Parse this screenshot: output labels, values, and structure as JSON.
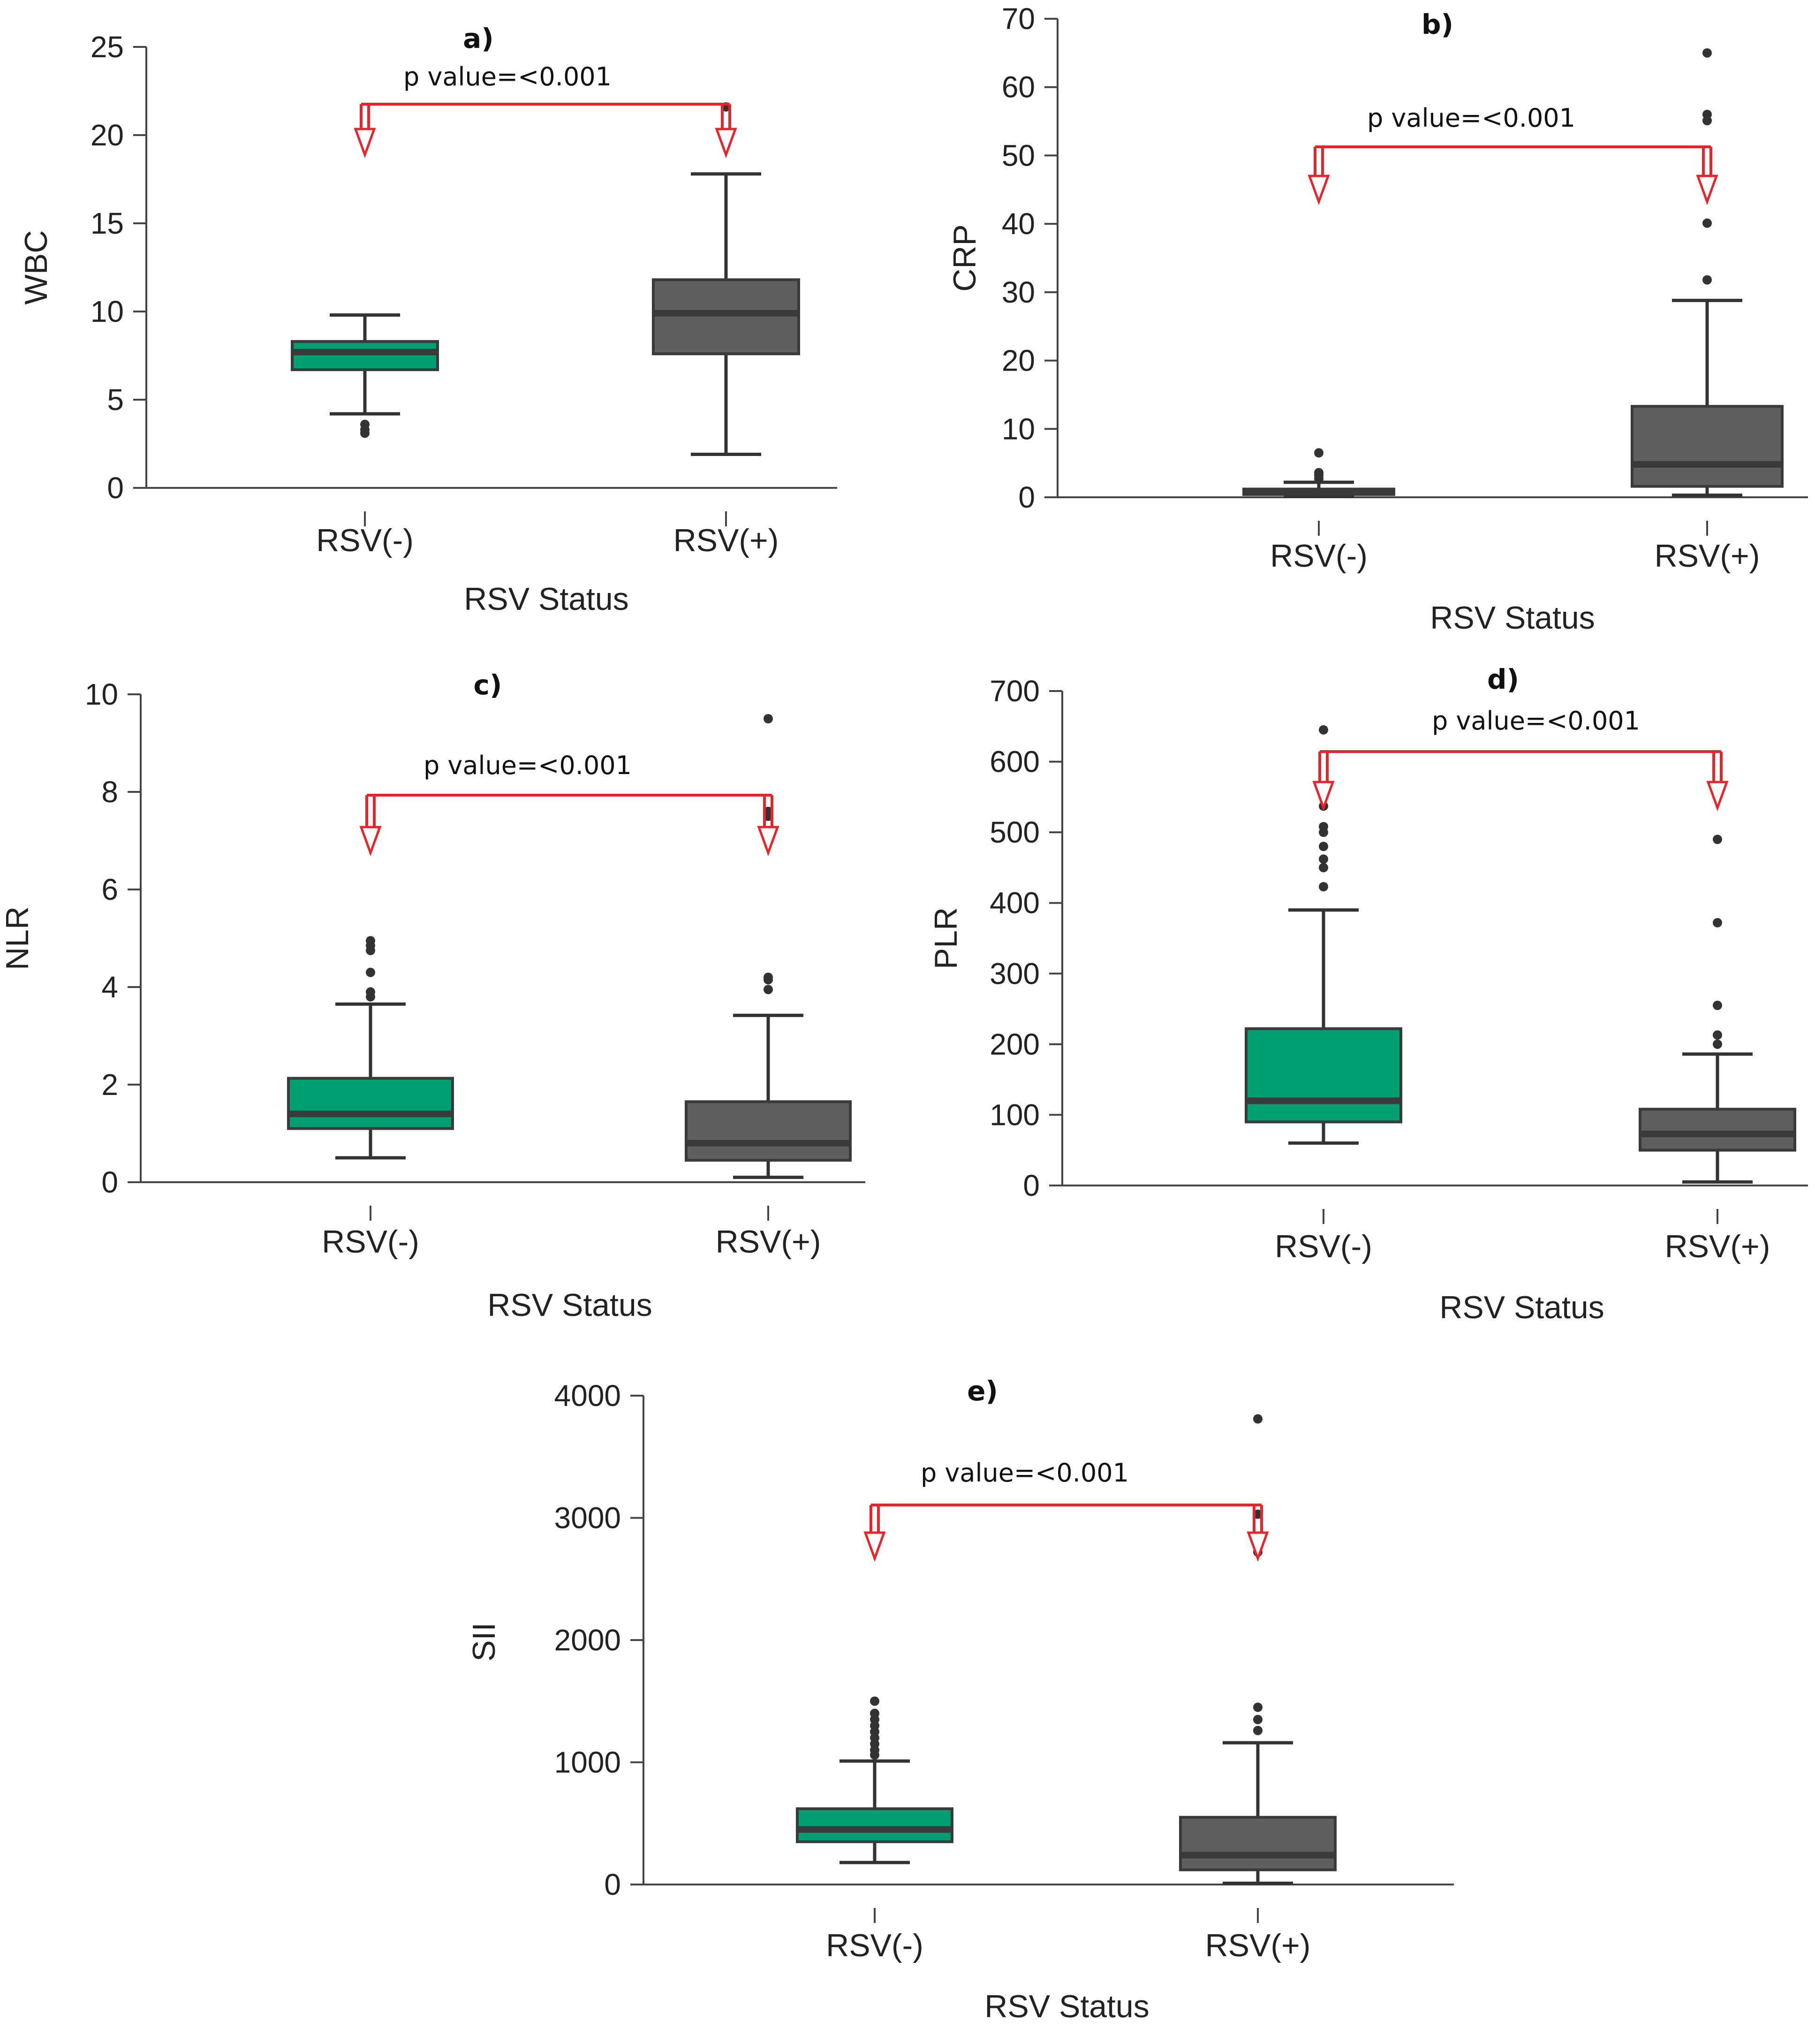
{
  "colors": {
    "negative": "#009e73",
    "positive": "#5f5f5f",
    "bracket": "#e8242b"
  },
  "chart_data": [
    {
      "type": "box",
      "panel_label": "a)",
      "ylabel": "WBC",
      "xlabel": "RSV Status",
      "categories": [
        "RSV(-)",
        "RSV(+)"
      ],
      "ylim": [
        0,
        25
      ],
      "yticks": [
        0,
        5,
        10,
        15,
        20,
        25
      ],
      "annotation": "p value=<0.001",
      "boxes": [
        {
          "category": "RSV(-)",
          "whisker_low": 4.2,
          "q1": 6.7,
          "median": 7.7,
          "q3": 8.3,
          "whisker_high": 9.8,
          "outliers": [
            3.1,
            3.3,
            3.6
          ]
        },
        {
          "category": "RSV(+)",
          "whisker_low": 1.9,
          "q1": 7.6,
          "median": 9.9,
          "q3": 11.8,
          "whisker_high": 17.8,
          "outliers": [
            19.9,
            21.6
          ]
        }
      ]
    },
    {
      "type": "box",
      "panel_label": "b)",
      "ylabel": "CRP",
      "xlabel": "RSV Status",
      "categories": [
        "RSV(-)",
        "RSV(+)"
      ],
      "ylim": [
        0,
        70
      ],
      "yticks": [
        0,
        10,
        20,
        30,
        40,
        50,
        60,
        70
      ],
      "annotation": "p value=<0.001",
      "boxes": [
        {
          "category": "RSV(-)",
          "whisker_low": 0.1,
          "q1": 0.4,
          "median": 0.7,
          "q3": 1.2,
          "whisker_high": 2.2,
          "outliers": [
            2.7,
            3.2,
            3.6,
            6.5
          ]
        },
        {
          "category": "RSV(+)",
          "whisker_low": 0.3,
          "q1": 1.6,
          "median": 4.8,
          "q3": 13.3,
          "whisker_high": 28.8,
          "outliers": [
            31.8,
            40.1,
            55.1,
            56.0,
            65.0
          ]
        }
      ]
    },
    {
      "type": "box",
      "panel_label": "c)",
      "ylabel": "NLR",
      "xlabel": "RSV Status",
      "categories": [
        "RSV(-)",
        "RSV(+)"
      ],
      "ylim": [
        0,
        10
      ],
      "yticks": [
        0,
        2,
        4,
        6,
        8,
        10
      ],
      "annotation": "p value=<0.001",
      "boxes": [
        {
          "category": "RSV(-)",
          "whisker_low": 0.5,
          "q1": 1.1,
          "median": 1.4,
          "q3": 2.13,
          "whisker_high": 3.65,
          "outliers": [
            3.8,
            3.9,
            4.3,
            4.75,
            4.85,
            4.95
          ]
        },
        {
          "category": "RSV(+)",
          "whisker_low": 0.1,
          "q1": 0.45,
          "median": 0.8,
          "q3": 1.65,
          "whisker_high": 3.42,
          "outliers": [
            3.95,
            4.15,
            4.2,
            7.5,
            7.6,
            9.5
          ]
        }
      ]
    },
    {
      "type": "box",
      "panel_label": "d)",
      "ylabel": "PLR",
      "xlabel": "RSV Status",
      "categories": [
        "RSV(-)",
        "RSV(+)"
      ],
      "ylim": [
        0,
        700
      ],
      "yticks": [
        0,
        100,
        200,
        300,
        400,
        500,
        600,
        700
      ],
      "annotation": "p value=<0.001",
      "boxes": [
        {
          "category": "RSV(-)",
          "whisker_low": 60,
          "q1": 90,
          "median": 120,
          "q3": 222,
          "whisker_high": 390,
          "outliers": [
            423,
            450,
            462,
            480,
            500,
            508,
            537,
            645
          ]
        },
        {
          "category": "RSV(+)",
          "whisker_low": 5,
          "q1": 50,
          "median": 73,
          "q3": 108,
          "whisker_high": 186,
          "outliers": [
            200,
            213,
            255,
            372,
            490
          ]
        }
      ]
    },
    {
      "type": "box",
      "panel_label": "e)",
      "ylabel": "SII",
      "xlabel": "RSV Status",
      "categories": [
        "RSV(-)",
        "RSV(+)"
      ],
      "ylim": [
        0,
        4000
      ],
      "yticks": [
        0,
        1000,
        2000,
        3000,
        4000
      ],
      "annotation": "p value=<0.001",
      "boxes": [
        {
          "category": "RSV(-)",
          "whisker_low": 180,
          "q1": 350,
          "median": 450,
          "q3": 620,
          "whisker_high": 1010,
          "outliers": [
            1060,
            1100,
            1150,
            1200,
            1250,
            1300,
            1350,
            1400,
            1500
          ]
        },
        {
          "category": "RSV(+)",
          "whisker_low": 10,
          "q1": 120,
          "median": 240,
          "q3": 550,
          "whisker_high": 1160,
          "outliers": [
            1260,
            1350,
            1450,
            2720,
            3030,
            3810
          ]
        }
      ]
    }
  ]
}
